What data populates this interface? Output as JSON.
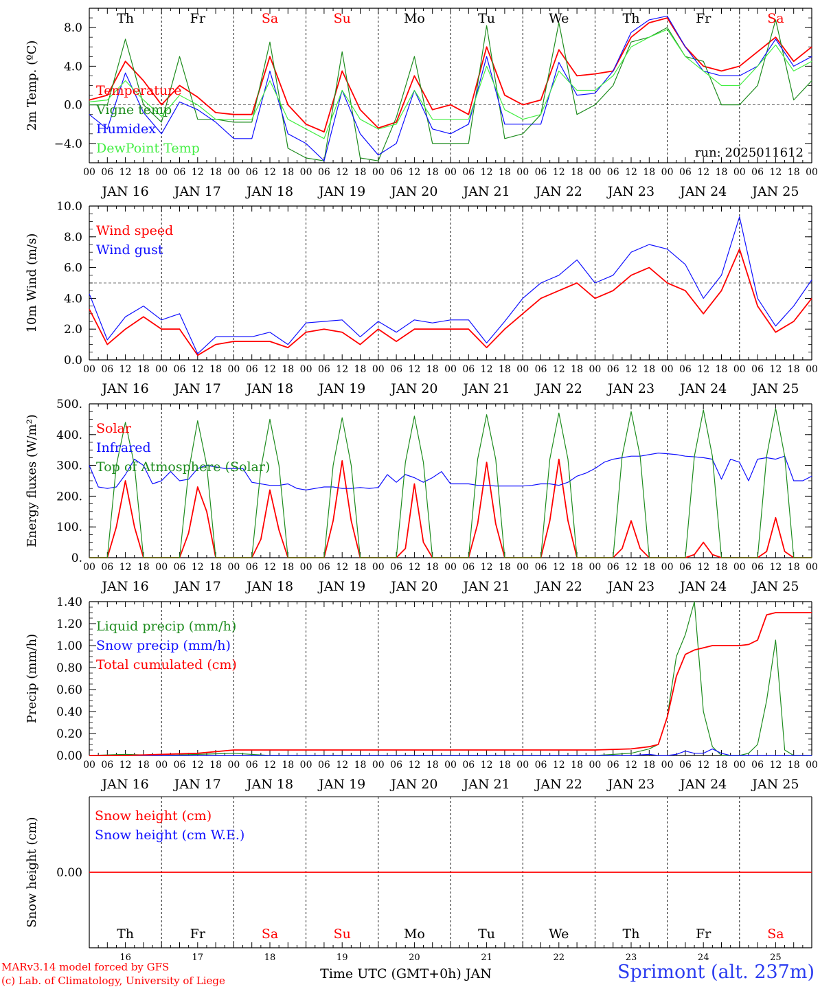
{
  "colors": {
    "red": "#ff0000",
    "darkgreen": "#1e8c1e",
    "blue": "#1010ff",
    "lightgreen": "#44ee44",
    "grey": "#555555"
  },
  "days": [
    {
      "abbr": "Th",
      "num": "16",
      "weekend": false
    },
    {
      "abbr": "Fr",
      "num": "17",
      "weekend": false
    },
    {
      "abbr": "Sa",
      "num": "18",
      "weekend": true
    },
    {
      "abbr": "Su",
      "num": "19",
      "weekend": true
    },
    {
      "abbr": "Mo",
      "num": "20",
      "weekend": false
    },
    {
      "abbr": "Tu",
      "num": "21",
      "weekend": false
    },
    {
      "abbr": "We",
      "num": "22",
      "weekend": false
    },
    {
      "abbr": "Th",
      "num": "23",
      "weekend": false
    },
    {
      "abbr": "Fr",
      "num": "24",
      "weekend": false
    },
    {
      "abbr": "Sa",
      "num": "25",
      "weekend": true
    }
  ],
  "hour_ticks": [
    "00",
    "06",
    "12",
    "18"
  ],
  "last_hour_tick": "00",
  "month": "JAN",
  "footer": {
    "credit_line1": "MARv3.14 model forced by GFS",
    "credit_line2": "(c) Lab. of Climatology, University of Liege",
    "xlabel": "Time UTC (GMT+0h) JAN",
    "station": "Sprimont (alt. 237m)"
  },
  "chart_data": [
    {
      "type": "line",
      "ylabel": "2m Temp. (ºC)",
      "ylim": [
        -6,
        10
      ],
      "yticks": [
        -4,
        0,
        4,
        8
      ],
      "ytick_labels": [
        "−4.0",
        "0.0",
        "4.0",
        "8.0"
      ],
      "reference_line": 0,
      "annotation": "run: 2025011612",
      "x_hours": [
        0,
        6,
        12,
        18,
        24,
        30,
        36,
        42,
        48,
        54,
        60,
        66,
        72,
        78,
        84,
        90,
        96,
        102,
        108,
        114,
        120,
        126,
        132,
        138,
        144,
        150,
        156,
        162,
        168,
        174,
        180,
        186,
        192,
        198,
        204,
        210,
        216,
        222,
        228,
        234,
        240
      ],
      "series": [
        {
          "name": "Temperature",
          "color": "red",
          "values": [
            0.5,
            1,
            4.5,
            2.5,
            0,
            2,
            0.8,
            -0.8,
            -1,
            -1,
            5,
            0,
            -2,
            -2.8,
            3.5,
            -0.5,
            -2.4,
            -1.8,
            3,
            -0.5,
            0,
            -1,
            6,
            1,
            0,
            0.5,
            5.7,
            3,
            3.2,
            3.5,
            7,
            8.5,
            9,
            6,
            4,
            3.5,
            4,
            5.5,
            7,
            4.5,
            6
          ]
        },
        {
          "name": "Vigne temp",
          "color": "darkgreen",
          "values": [
            0,
            0,
            6.8,
            0,
            -1.8,
            5,
            -1.5,
            -1.5,
            -1.8,
            -1.8,
            6.5,
            -4.5,
            -5.5,
            -5.8,
            5.5,
            -5.5,
            -5.8,
            -1.3,
            5,
            -4,
            -4,
            -4,
            8.2,
            -3.5,
            -3,
            -1,
            8.5,
            -1,
            0,
            2,
            6.5,
            7,
            8,
            5,
            4.5,
            0,
            0,
            2,
            8.8,
            0.5,
            2.5
          ]
        },
        {
          "name": "Humidex",
          "color": "blue",
          "values": [
            -1,
            -2.5,
            3.3,
            -0.8,
            -3,
            0.3,
            -0.5,
            -1.8,
            -3.5,
            -3.5,
            3.5,
            -3,
            -4,
            -5.8,
            1.5,
            -3,
            -5.2,
            -4,
            1.5,
            -2.5,
            -3,
            -2,
            5,
            -2,
            -2,
            -2,
            4.4,
            1,
            1.2,
            3.5,
            7.5,
            8.8,
            9.2,
            6,
            3.5,
            3,
            3,
            4,
            6.8,
            4,
            5
          ]
        },
        {
          "name": "DewPoint Temp",
          "color": "lightgreen",
          "values": [
            0.3,
            0.5,
            2.5,
            0.5,
            -1.2,
            1,
            0,
            -1.5,
            -1.5,
            -1.5,
            2.5,
            -1.5,
            -2.5,
            -3.5,
            1.5,
            -1.5,
            -2.5,
            -2,
            1.5,
            -1.5,
            -1.5,
            -1.5,
            4,
            -0.5,
            -1.5,
            -1,
            3.5,
            1.5,
            1.5,
            3,
            6,
            7,
            7.8,
            5,
            3.5,
            2,
            2,
            4,
            6.2,
            3.5,
            4.5
          ]
        }
      ]
    },
    {
      "type": "line",
      "ylabel": "10m Wind (m/s)",
      "ylim": [
        0,
        10
      ],
      "yticks": [
        0,
        2,
        4,
        6,
        8,
        10
      ],
      "ytick_labels": [
        "0.0",
        "2.0",
        "4.0",
        "6.0",
        "8.0",
        "10.0"
      ],
      "reference_line": 5,
      "x_hours": [
        0,
        6,
        12,
        18,
        24,
        30,
        36,
        42,
        48,
        54,
        60,
        66,
        72,
        78,
        84,
        90,
        96,
        102,
        108,
        114,
        120,
        126,
        132,
        138,
        144,
        150,
        156,
        162,
        168,
        174,
        180,
        186,
        192,
        198,
        204,
        210,
        216,
        222,
        228,
        234,
        240
      ],
      "series": [
        {
          "name": "Wind speed",
          "color": "red",
          "values": [
            3.3,
            1,
            2,
            2.8,
            2,
            2,
            0.3,
            1,
            1.2,
            1.2,
            1.2,
            0.8,
            1.8,
            2,
            1.8,
            1,
            2,
            1.2,
            2,
            2,
            2,
            2,
            0.8,
            2,
            3,
            4,
            4.5,
            5,
            4,
            4.5,
            5.5,
            6,
            5,
            4.5,
            3,
            4.5,
            7.2,
            3.5,
            1.8,
            2.5,
            4
          ]
        },
        {
          "name": "Wind gust",
          "color": "blue",
          "values": [
            4.3,
            1.3,
            2.8,
            3.5,
            2.6,
            3,
            0.4,
            1.5,
            1.5,
            1.5,
            1.8,
            1,
            2.4,
            2.5,
            2.6,
            1.5,
            2.5,
            1.8,
            2.6,
            2.4,
            2.6,
            2.6,
            1.1,
            2.5,
            4,
            5,
            5.5,
            6.5,
            5,
            5.5,
            7,
            7.5,
            7.2,
            6.2,
            4,
            5.5,
            9.3,
            4,
            2.2,
            3.5,
            5.2
          ]
        }
      ]
    },
    {
      "type": "line",
      "ylabel": "Energy fluxes (W/m²)",
      "ylim": [
        0,
        500
      ],
      "yticks": [
        0,
        100,
        200,
        300,
        400,
        500
      ],
      "ytick_labels": [
        "0.",
        "100.",
        "200.",
        "300.",
        "400.",
        "500."
      ],
      "x_hours": [
        0,
        3,
        6,
        9,
        12,
        15,
        18,
        21,
        24,
        27,
        30,
        33,
        36,
        39,
        42,
        45,
        48,
        51,
        54,
        57,
        60,
        63,
        66,
        69,
        72,
        75,
        78,
        81,
        84,
        87,
        90,
        93,
        96,
        99,
        102,
        105,
        108,
        111,
        114,
        117,
        120,
        123,
        126,
        129,
        132,
        135,
        138,
        141,
        144,
        147,
        150,
        153,
        156,
        159,
        162,
        165,
        168,
        171,
        174,
        177,
        180,
        183,
        186,
        189,
        192,
        195,
        198,
        201,
        204,
        207,
        210,
        213,
        216,
        219,
        222,
        225,
        228,
        231,
        234,
        237,
        240
      ],
      "series": [
        {
          "name": "Solar",
          "color": "red",
          "values": [
            0,
            0,
            0,
            100,
            250,
            100,
            0,
            0,
            0,
            0,
            0,
            80,
            230,
            150,
            0,
            0,
            0,
            0,
            0,
            60,
            220,
            90,
            0,
            0,
            0,
            0,
            0,
            120,
            315,
            120,
            0,
            0,
            0,
            0,
            0,
            30,
            240,
            50,
            0,
            0,
            0,
            0,
            0,
            110,
            310,
            110,
            0,
            0,
            0,
            0,
            0,
            120,
            320,
            120,
            0,
            0,
            0,
            0,
            0,
            30,
            120,
            30,
            0,
            0,
            0,
            0,
            0,
            10,
            50,
            10,
            0,
            0,
            0,
            0,
            0,
            20,
            130,
            20,
            0,
            0,
            0
          ]
        },
        {
          "name": "Infrared",
          "color": "blue",
          "values": [
            300,
            230,
            225,
            230,
            270,
            320,
            300,
            240,
            250,
            280,
            250,
            255,
            290,
            300,
            295,
            290,
            290,
            290,
            245,
            240,
            235,
            235,
            240,
            225,
            220,
            225,
            230,
            230,
            225,
            225,
            228,
            225,
            228,
            270,
            245,
            270,
            260,
            245,
            260,
            280,
            240,
            240,
            240,
            235,
            235,
            233,
            233,
            233,
            233,
            235,
            240,
            240,
            235,
            245,
            265,
            275,
            290,
            310,
            320,
            325,
            330,
            330,
            335,
            340,
            338,
            335,
            330,
            328,
            325,
            320,
            255,
            320,
            310,
            250,
            320,
            325,
            320,
            330,
            250,
            250,
            265
          ]
        },
        {
          "name": "Top of Atmosphere (Solar)",
          "color": "darkgreen",
          "values": [
            0,
            0,
            0,
            300,
            440,
            300,
            0,
            0,
            0,
            0,
            0,
            280,
            445,
            300,
            0,
            0,
            0,
            0,
            0,
            290,
            450,
            300,
            0,
            0,
            0,
            0,
            0,
            300,
            455,
            300,
            0,
            0,
            0,
            0,
            0,
            310,
            460,
            310,
            0,
            0,
            0,
            0,
            0,
            320,
            465,
            320,
            0,
            0,
            0,
            0,
            0,
            320,
            470,
            320,
            0,
            0,
            0,
            0,
            0,
            330,
            475,
            330,
            0,
            0,
            0,
            0,
            0,
            330,
            480,
            330,
            0,
            0,
            0,
            0,
            0,
            330,
            485,
            330,
            0,
            0,
            0
          ]
        }
      ]
    },
    {
      "type": "line",
      "ylabel": "Precip (mm/h)",
      "ylim": [
        0,
        1.4
      ],
      "yticks": [
        0,
        0.2,
        0.4,
        0.6,
        0.8,
        1,
        1.2,
        1.4
      ],
      "ytick_labels": [
        "0.00",
        "0.20",
        "0.40",
        "0.60",
        "0.80",
        "1.00",
        "1.20",
        "1.40"
      ],
      "x_hours": [
        0,
        12,
        24,
        36,
        48,
        60,
        72,
        96,
        120,
        144,
        168,
        180,
        186,
        189,
        192,
        195,
        198,
        201,
        204,
        207,
        210,
        213,
        216,
        219,
        222,
        225,
        228,
        231,
        234,
        240
      ],
      "series": [
        {
          "name": "Liquid precip (mm/h)",
          "color": "darkgreen",
          "values": [
            0,
            0.01,
            0,
            0.01,
            0.02,
            0,
            0,
            0,
            0,
            0,
            0,
            0.02,
            0.06,
            0.1,
            0.35,
            0.9,
            1.1,
            1.4,
            0.4,
            0.08,
            0,
            0,
            0,
            0.02,
            0.1,
            0.5,
            1.05,
            0.05,
            0,
            0
          ]
        },
        {
          "name": "Snow precip (mm/h)",
          "color": "blue",
          "values": [
            0,
            0,
            0,
            0,
            0,
            0,
            0,
            0,
            0,
            0,
            0,
            0,
            0.01,
            0,
            0,
            0.01,
            0.04,
            0.02,
            0.02,
            0.06,
            0.02,
            0,
            0,
            0,
            0,
            0,
            0,
            0,
            0,
            0
          ]
        },
        {
          "name": "Total cumulated (cm)",
          "color": "red",
          "values": [
            0,
            0,
            0.01,
            0.02,
            0.05,
            0.05,
            0.05,
            0.05,
            0.05,
            0.05,
            0.05,
            0.06,
            0.08,
            0.1,
            0.35,
            0.72,
            0.92,
            0.96,
            0.98,
            1.0,
            1.0,
            1.0,
            1.0,
            1.01,
            1.05,
            1.28,
            1.3,
            1.3,
            1.3,
            1.3
          ]
        }
      ]
    },
    {
      "type": "line",
      "ylabel": "Snow height (cm)",
      "ylim": [
        -1,
        1
      ],
      "yticks": [
        0
      ],
      "ytick_labels": [
        "0.00"
      ],
      "x_hours": [
        0,
        240
      ],
      "series": [
        {
          "name": "Snow height (cm)",
          "color": "red",
          "values": [
            0,
            0
          ]
        },
        {
          "name": "Snow height (cm W.E.)",
          "color": "blue",
          "values": []
        }
      ]
    }
  ]
}
